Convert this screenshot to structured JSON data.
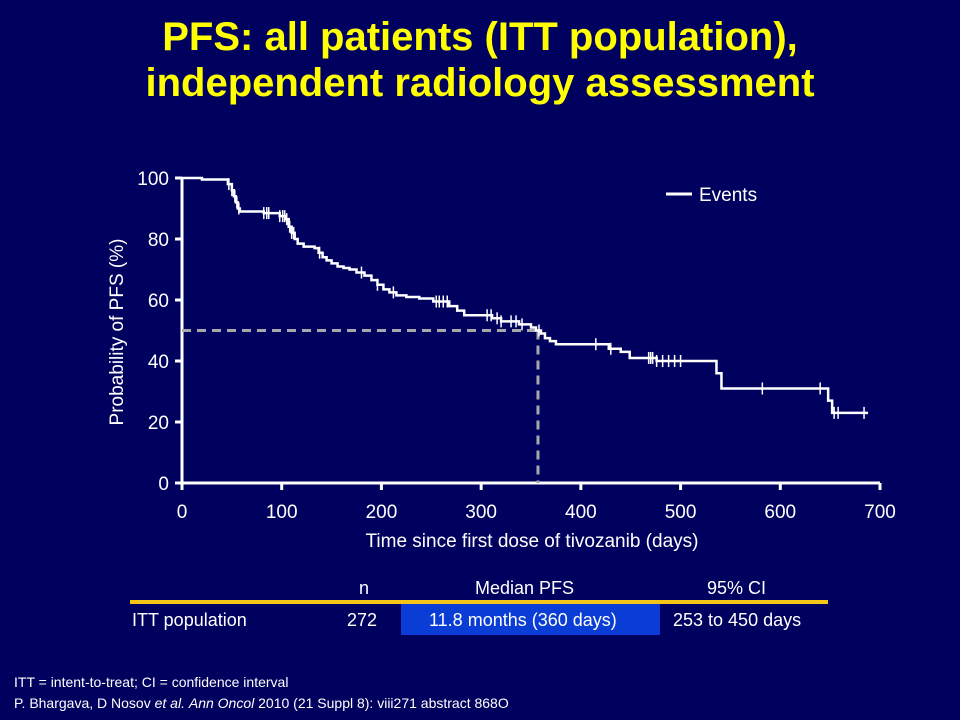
{
  "title_line1": "PFS: all patients (ITT population),",
  "title_line2": "independent radiology assessment",
  "chart_data": {
    "type": "line",
    "xlabel": "Time since first dose of tivozanib (days)",
    "ylabel": "Probability of PFS (%)",
    "xlim": [
      0,
      700
    ],
    "ylim": [
      0,
      100
    ],
    "x_ticks": [
      "0",
      "100",
      "200",
      "300",
      "400",
      "500",
      "600",
      "700"
    ],
    "y_ticks": [
      "0",
      "20",
      "40",
      "60",
      "80",
      "100"
    ],
    "legend": {
      "label": "Events",
      "placement": "top-right"
    },
    "median_reference": {
      "x": 357,
      "y": 50
    },
    "series": [
      {
        "name": "Events",
        "steps": [
          [
            0,
            100
          ],
          [
            18,
            100
          ],
          [
            20,
            99.5
          ],
          [
            44,
            99.5
          ],
          [
            46,
            98
          ],
          [
            50,
            96
          ],
          [
            52,
            94
          ],
          [
            54,
            92
          ],
          [
            56,
            90
          ],
          [
            58,
            89
          ],
          [
            80,
            89
          ],
          [
            82,
            88.5
          ],
          [
            95,
            88.5
          ],
          [
            98,
            87.5
          ],
          [
            104,
            86.5
          ],
          [
            107,
            84
          ],
          [
            110,
            82
          ],
          [
            113,
            80
          ],
          [
            116,
            78.5
          ],
          [
            122,
            77.5
          ],
          [
            133,
            77
          ],
          [
            137,
            75.5
          ],
          [
            141,
            74
          ],
          [
            145,
            73
          ],
          [
            150,
            72
          ],
          [
            156,
            71
          ],
          [
            162,
            70.5
          ],
          [
            168,
            70
          ],
          [
            175,
            69
          ],
          [
            183,
            68
          ],
          [
            190,
            66.5
          ],
          [
            196,
            65
          ],
          [
            202,
            63.5
          ],
          [
            208,
            62.5
          ],
          [
            215,
            61.5
          ],
          [
            225,
            61
          ],
          [
            238,
            60.5
          ],
          [
            252,
            59.5
          ],
          [
            268,
            58
          ],
          [
            276,
            56.5
          ],
          [
            283,
            55
          ],
          [
            304,
            55
          ],
          [
            311,
            54
          ],
          [
            320,
            53
          ],
          [
            338,
            52
          ],
          [
            350,
            51
          ],
          [
            355,
            50
          ],
          [
            360,
            49
          ],
          [
            364,
            47.5
          ],
          [
            369,
            46.5
          ],
          [
            375,
            45.5
          ],
          [
            420,
            45.5
          ],
          [
            428,
            44
          ],
          [
            440,
            43
          ],
          [
            449,
            41
          ],
          [
            470,
            41
          ],
          [
            476,
            40
          ],
          [
            502,
            40
          ],
          [
            534,
            40
          ],
          [
            536,
            36
          ],
          [
            541,
            31
          ],
          [
            632,
            31
          ],
          [
            646,
            31
          ],
          [
            648,
            27
          ],
          [
            652,
            23
          ],
          [
            688,
            23
          ]
        ],
        "censored_x": [
          47,
          50,
          53,
          55,
          57,
          82,
          85,
          87,
          98,
          101,
          103,
          105,
          108,
          110,
          112,
          138,
          180,
          196,
          212,
          255,
          258,
          262,
          266,
          306,
          310,
          316,
          320,
          330,
          335,
          341,
          358,
          415,
          430,
          468,
          470,
          472,
          476,
          482,
          488,
          494,
          500,
          582,
          640,
          654,
          658,
          684
        ]
      }
    ]
  },
  "table": {
    "headers": {
      "n": "n",
      "median": "Median PFS",
      "ci": "95% CI"
    },
    "row": {
      "label": "ITT population",
      "n": "272",
      "median": "11.8 months (360 days)",
      "ci": "253 to 450 days"
    }
  },
  "footnote": "ITT = intent-to-treat; CI = confidence interval",
  "citation": {
    "authors": "P. Bhargava, D Nosov",
    "et_al": "et al.",
    "journal": "Ann Oncol",
    "details": "2010 (21 Suppl 8): viii271 abstract 868O"
  },
  "colors": {
    "background": "#00005e",
    "title": "#ffff00",
    "curve": "#ffffff",
    "reference_line": "#a8a8a8",
    "table_rule": "#f5c518",
    "median_highlight": "#0a3cd6"
  }
}
